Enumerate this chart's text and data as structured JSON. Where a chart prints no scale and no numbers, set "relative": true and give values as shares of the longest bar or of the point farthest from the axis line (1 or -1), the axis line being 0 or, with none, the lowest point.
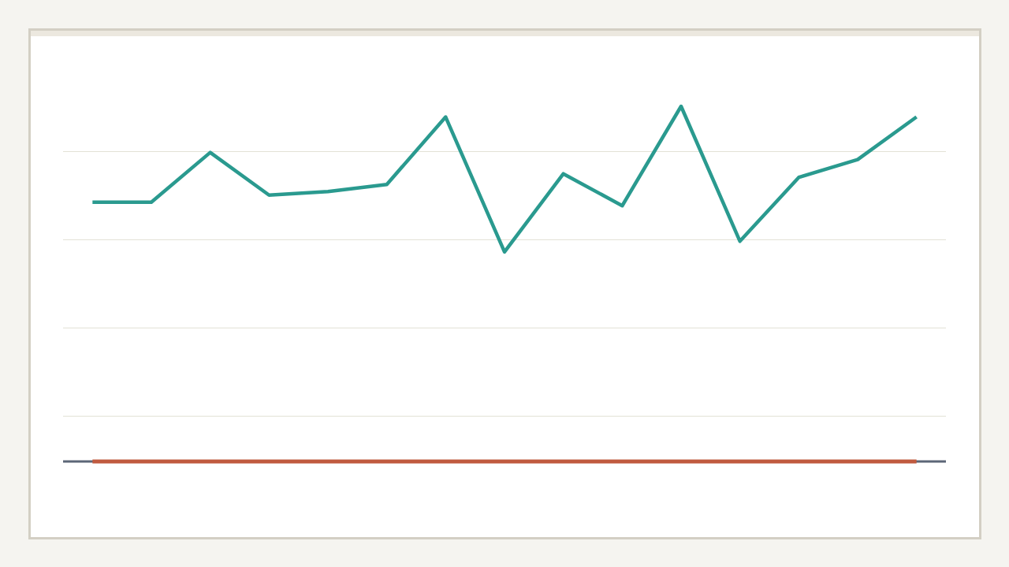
{
  "chart_data": {
    "type": "line",
    "relative": true,
    "categories": [
      null,
      null,
      null,
      null,
      null,
      null,
      null,
      null,
      null,
      null,
      null,
      null,
      null,
      null,
      null
    ],
    "series": [
      {
        "color": "#2a9a8f",
        "values": [
          0.73,
          0.73,
          0.87,
          0.75,
          0.76,
          0.78,
          0.97,
          0.59,
          0.81,
          0.72,
          1,
          0.62,
          0.8,
          0.85,
          0.97
        ]
      },
      {
        "color": "#c05a3f",
        "values": [
          0,
          0,
          0,
          0,
          0,
          0,
          0,
          0,
          0,
          0,
          0,
          0,
          0,
          0,
          0
        ]
      }
    ],
    "grid": "y"
  }
}
